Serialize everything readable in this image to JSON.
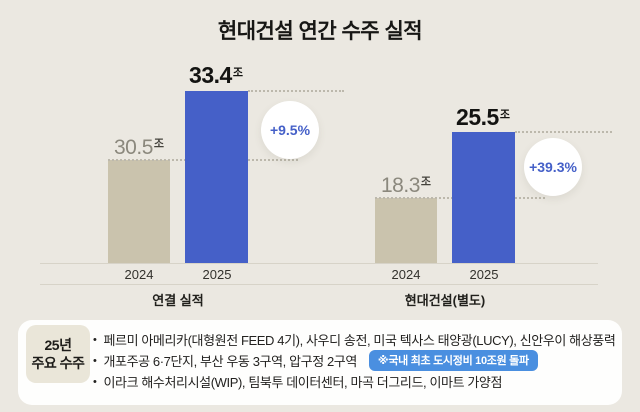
{
  "title": "현대건설 연간 수주 실적",
  "chart_data": {
    "type": "bar",
    "title": "현대건설 연간 수주 실적",
    "unit": "조",
    "groups": [
      {
        "label": "연결 실적",
        "categories": [
          "2024",
          "2025"
        ],
        "values": [
          30.5,
          33.4
        ],
        "change_label": "+9.5%"
      },
      {
        "label": "현대건설(별도)",
        "categories": [
          "2024",
          "2025"
        ],
        "values": [
          18.3,
          25.5
        ],
        "change_label": "+39.3%"
      }
    ],
    "colors": {
      "background": "#ebe8e1",
      "bar_previous": "#cac3ad",
      "bar_current": "#4560c8",
      "change_text": "#4560c8",
      "badge_blue": "#4a8fe0"
    },
    "legend_position": "none",
    "grid": "off"
  },
  "summary": {
    "label_line1": "25년",
    "label_line2": "주요 수주",
    "bullet_char": "•",
    "bullets": [
      "페르미 아메리카(대형원전 FEED 4기), 사우디 송전, 미국 텍사스 태양광(LUCY), 신안우이 해상풍력",
      "개포주공 6·7단지, 부산 우동 3구역, 압구정 2구역",
      "이라크 해수처리시설(WIP), 팀북투 데이터센터, 마곡 더그리드, 이마트 가양점"
    ],
    "badge": "※국내 최초 도시정비 10조원 돌파"
  }
}
